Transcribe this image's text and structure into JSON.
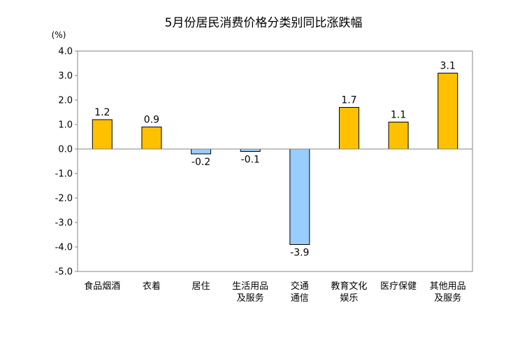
{
  "chart_data": {
    "type": "bar",
    "title": "5月份居民消费价格分类别同比涨跌幅",
    "unit_label": "(%)",
    "ylim": [
      -5.0,
      4.0
    ],
    "yticks": [
      "4.0",
      "3.0",
      "2.0",
      "1.0",
      "0.0",
      "-1.0",
      "-2.0",
      "-3.0",
      "-4.0",
      "-5.0"
    ],
    "categories": [
      [
        "食品烟酒"
      ],
      [
        "衣着"
      ],
      [
        "居住"
      ],
      [
        "生活用品",
        "及服务"
      ],
      [
        "交通",
        "通信"
      ],
      [
        "教育文化",
        "娱乐"
      ],
      [
        "医疗保健"
      ],
      [
        "其他用品",
        "及服务"
      ]
    ],
    "values": [
      1.2,
      0.9,
      -0.2,
      -0.1,
      -3.9,
      1.7,
      1.1,
      3.1
    ],
    "value_labels": [
      "1.2",
      "0.9",
      "-0.2",
      "-0.1",
      "-3.9",
      "1.7",
      "1.1",
      "3.1"
    ],
    "grid": false,
    "colors": {
      "positive": "#ffc000",
      "positive_stroke": "#000000",
      "negative": "#99ccff",
      "negative_stroke": "#000000",
      "axis": "#868686"
    }
  }
}
